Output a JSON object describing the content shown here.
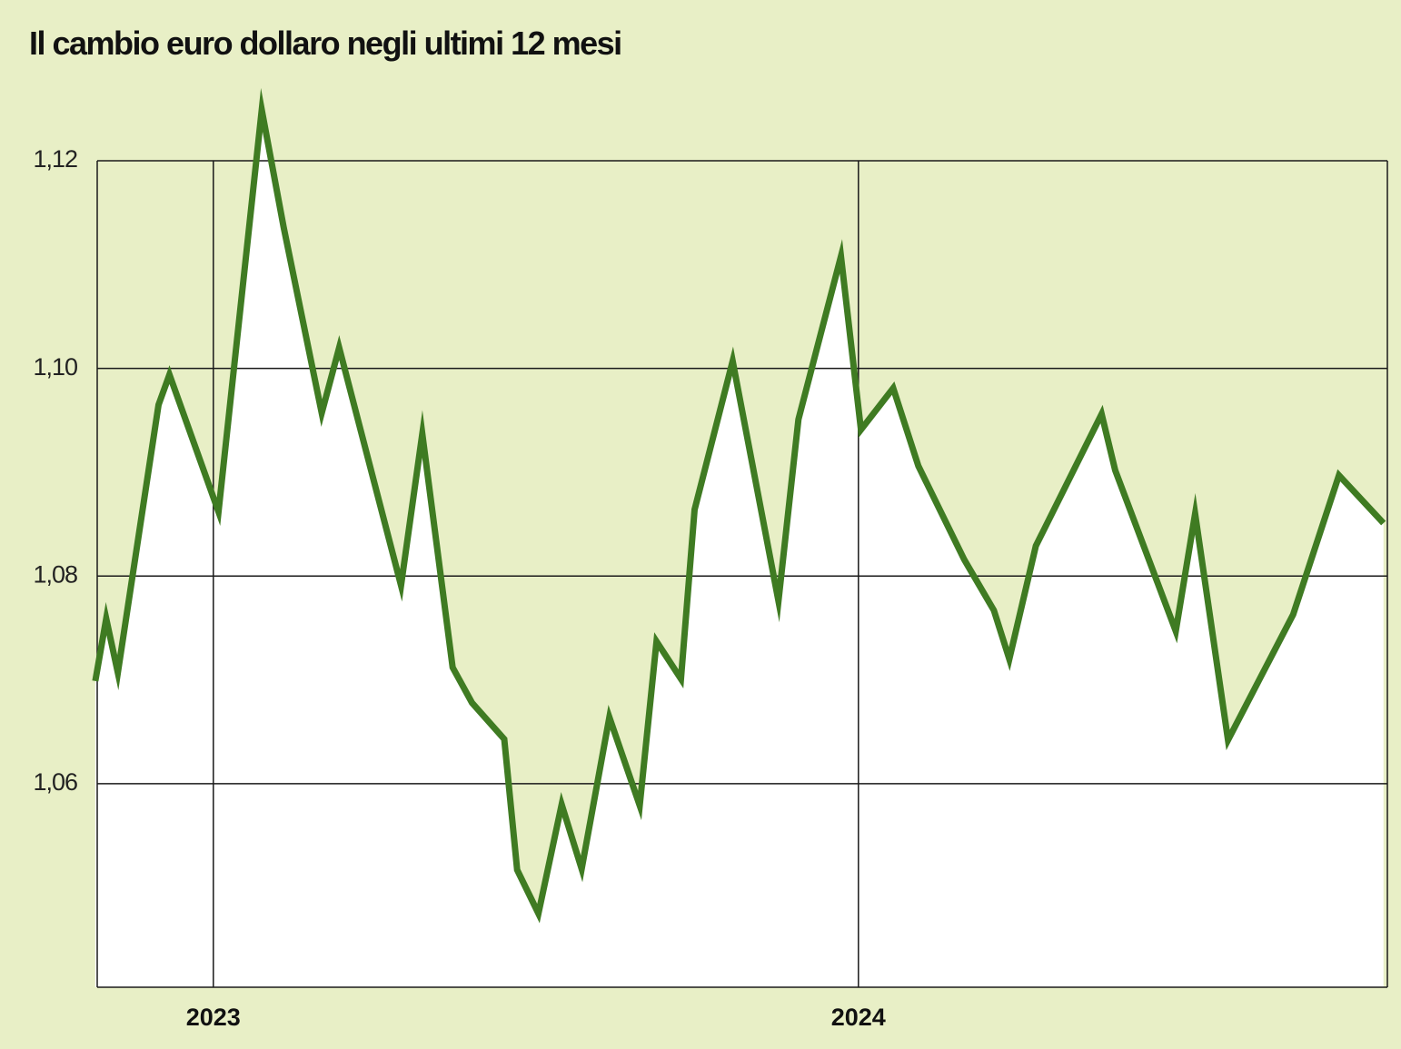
{
  "chart_data": {
    "type": "line",
    "title": "Il cambio euro dollaro negli ultimi 12 mesi",
    "x": [
      2022.817,
      2022.834,
      2022.852,
      2022.915,
      2022.932,
      2023.008,
      2023.075,
      2023.109,
      2023.168,
      2023.195,
      2023.291,
      2023.324,
      2023.371,
      2023.401,
      2023.451,
      2023.471,
      2023.504,
      2023.54,
      2023.571,
      2023.614,
      2023.661,
      2023.687,
      2023.725,
      2023.746,
      2023.805,
      2023.876,
      2023.907,
      2023.973,
      2024.004,
      2024.054,
      2024.093,
      2024.164,
      2024.21,
      2024.234,
      2024.275,
      2024.377,
      2024.398,
      2024.492,
      2024.522,
      2024.573,
      2024.623,
      2024.674,
      2024.745,
      2024.814
    ],
    "series": [
      {
        "color": "#3f7b22",
        "values": [
          1.0699,
          1.0759,
          1.0707,
          1.0965,
          1.0994,
          1.0862,
          1.1249,
          1.1136,
          1.0957,
          1.102,
          1.0791,
          1.0937,
          1.0712,
          1.0678,
          1.0643,
          1.0517,
          1.0475,
          1.058,
          1.0518,
          1.0664,
          1.0579,
          1.0737,
          1.0701,
          1.0864,
          1.1007,
          1.0776,
          1.0951,
          1.1108,
          1.0941,
          1.0981,
          1.0906,
          1.0816,
          1.0767,
          1.072,
          1.0829,
          1.0956,
          1.0902,
          1.0747,
          1.086,
          1.0642,
          1.0702,
          1.0763,
          1.0897,
          1.0851
        ]
      }
    ],
    "xlim": [
      2022.82,
      2024.82
    ],
    "xticks": [
      2023,
      2024
    ],
    "ylim": [
      1.0404,
      1.12
    ],
    "yticks": [
      {
        "value": 1.06,
        "label": "1,06"
      },
      {
        "value": 1.08,
        "label": "1,08"
      },
      {
        "value": 1.1,
        "label": "1,10"
      },
      {
        "value": 1.12,
        "label": "1,12"
      }
    ],
    "grid": true
  }
}
